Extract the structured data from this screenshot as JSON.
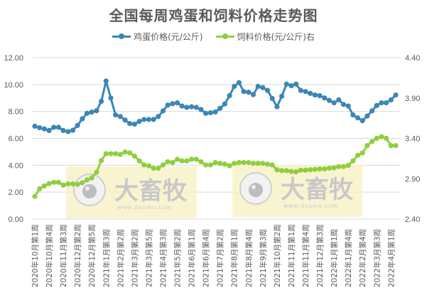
{
  "title": "全国每周鸡蛋和饲料价格走势图",
  "legend": [
    {
      "label": "鸡蛋价格(元/公斤)",
      "color": "#3c86b4"
    },
    {
      "label": "饲料价格(元/公斤)右",
      "color": "#8fcf3f"
    }
  ],
  "watermark": {
    "brand": "大畜牧",
    "url": "www.dxumu.com"
  },
  "chart_data": {
    "type": "line",
    "title": "全国每周鸡蛋和饲料价格走势图",
    "xlabel": "",
    "ylabel": "",
    "y_left": {
      "min": 0,
      "max": 12,
      "ticks": [
        "0.00",
        "2.00",
        "4.00",
        "6.00",
        "8.00",
        "10.00",
        "12.00"
      ]
    },
    "y_right": {
      "min": 2.4,
      "max": 4.4,
      "ticks": [
        "2.40",
        "2.90",
        "3.40",
        "3.90",
        "4.40"
      ]
    },
    "grid": true,
    "legend_position": "top",
    "x_tick_labels": [
      "2020年10月第1周",
      "2020年10月第4周",
      "2020年11月第3周",
      "2020年12月第2周",
      "2020年12月第5周",
      "2021年1月第3周",
      "2021年2月第2周",
      "2021年3月第2周",
      "2021年3月第5周",
      "2021年4月第3周",
      "2021年5月第2周",
      "2021年6月第1周",
      "2021年6月第4周",
      "2021年7月第2周",
      "2021年8月第1周",
      "2021年8月第4周",
      "2021年9月第3周",
      "2021年10月第2周",
      "2021年11月第1周",
      "2021年11月第4周",
      "2021年12月第3周",
      "2022年1月第1周",
      "2022年1月第4周",
      "2022年2月第4周",
      "2022年3月第3周",
      "2022年4月第1周"
    ],
    "x_tick_every": 3,
    "series": [
      {
        "name": "鸡蛋价格(元/公斤)",
        "axis": "left",
        "color": "#3c86b4",
        "values": [
          6.9,
          6.79,
          6.7,
          6.58,
          6.82,
          6.82,
          6.58,
          6.5,
          6.6,
          6.96,
          7.45,
          7.86,
          7.95,
          8.05,
          8.75,
          10.26,
          9.0,
          7.74,
          7.62,
          7.36,
          7.1,
          7.05,
          7.26,
          7.4,
          7.4,
          7.4,
          7.62,
          8.04,
          8.47,
          8.57,
          8.64,
          8.4,
          8.3,
          8.35,
          8.3,
          8.14,
          7.86,
          7.9,
          7.96,
          8.23,
          8.56,
          9.17,
          9.86,
          10.14,
          9.48,
          9.43,
          9.25,
          9.86,
          9.77,
          9.56,
          8.96,
          8.35,
          9.13,
          10.03,
          9.91,
          10.03,
          9.56,
          9.48,
          9.34,
          9.22,
          9.17,
          9.0,
          8.82,
          8.64,
          8.86,
          8.52,
          8.4,
          7.74,
          7.52,
          7.31,
          7.66,
          8.04,
          8.44,
          8.64,
          8.64,
          8.86,
          9.22
        ]
      },
      {
        "name": "饲料价格(元/公斤)右",
        "axis": "right",
        "color": "#8fcf3f",
        "values": [
          2.68,
          2.775,
          2.81,
          2.84,
          2.855,
          2.855,
          2.82,
          2.835,
          2.835,
          2.83,
          2.85,
          2.885,
          2.91,
          2.98,
          3.125,
          3.21,
          3.21,
          3.21,
          3.2,
          3.23,
          3.22,
          3.18,
          3.12,
          3.07,
          3.06,
          3.03,
          3.03,
          3.07,
          3.11,
          3.1,
          3.14,
          3.12,
          3.12,
          3.14,
          3.14,
          3.11,
          3.07,
          3.07,
          3.1,
          3.09,
          3.08,
          3.06,
          3.09,
          3.1,
          3.1,
          3.1,
          3.09,
          3.09,
          3.09,
          3.08,
          3.07,
          3.01,
          3.0,
          3.0,
          2.99,
          2.985,
          3.005,
          3.005,
          3.01,
          3.015,
          3.02,
          3.02,
          3.03,
          3.035,
          3.05,
          3.05,
          3.065,
          3.12,
          3.19,
          3.22,
          3.31,
          3.36,
          3.4,
          3.42,
          3.4,
          3.31,
          3.31
        ]
      }
    ]
  }
}
